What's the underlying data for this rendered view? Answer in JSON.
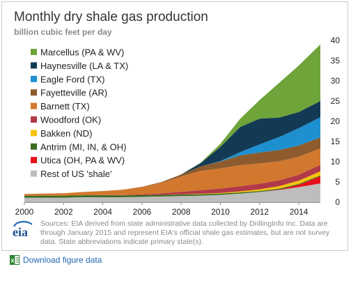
{
  "title": "Monthly dry shale gas production",
  "subtitle": "billion cubic feet per day",
  "sources": "Sources: EIA derived from state administrative data collected by DrillingInfo Inc. Data are through January 2015  and represent EIA's official shale gas estimates, but are not survey data. State abbreviations indicate primary state(s).",
  "logo_text": "eia",
  "download_label": "Download figure data",
  "chart_data": {
    "type": "area",
    "stacked": true,
    "xlim": [
      2000,
      2015.1
    ],
    "ylim": [
      0,
      40
    ],
    "x_ticks": [
      2000,
      2002,
      2004,
      2006,
      2008,
      2010,
      2012,
      2014
    ],
    "y_ticks": [
      0,
      5,
      10,
      15,
      20,
      25,
      30,
      35,
      40
    ],
    "y_axis_side": "right",
    "grid": false,
    "legend_position": "top-left",
    "legend_order": [
      "Marcellus (PA & WV)",
      "Haynesville (LA & TX)",
      "Eagle Ford (TX)",
      "Fayetteville (AR)",
      "Barnett (TX)",
      "Woodford (OK)",
      "Bakken (ND)",
      "Antrim (MI, IN, & OH)",
      "Utica (OH, PA & WV)",
      "Rest of US 'shale'"
    ],
    "x": [
      2000,
      2001,
      2002,
      2003,
      2004,
      2005,
      2006,
      2007,
      2008,
      2009,
      2010,
      2011,
      2012,
      2013,
      2014,
      2015.1
    ],
    "series": [
      {
        "name": "Rest of US 'shale'",
        "color": "#bdbdbd",
        "values": [
          1.1,
          1.1,
          1.1,
          1.2,
          1.2,
          1.2,
          1.3,
          1.4,
          1.5,
          1.6,
          1.8,
          2.1,
          2.5,
          3.0,
          3.7,
          4.6
        ]
      },
      {
        "name": "Utica (OH, PA & WV)",
        "color": "#e8111b",
        "values": [
          0,
          0,
          0,
          0,
          0,
          0,
          0,
          0,
          0,
          0,
          0,
          0,
          0,
          0.1,
          0.6,
          1.8
        ]
      },
      {
        "name": "Antrim (MI, IN, & OH)",
        "color": "#3d6b20",
        "values": [
          0.5,
          0.5,
          0.5,
          0.5,
          0.5,
          0.45,
          0.45,
          0.4,
          0.4,
          0.35,
          0.3,
          0.3,
          0.25,
          0.25,
          0.2,
          0.2
        ]
      },
      {
        "name": "Bakken (ND)",
        "color": "#f5c40d",
        "values": [
          0,
          0,
          0,
          0,
          0,
          0,
          0,
          0,
          0.05,
          0.1,
          0.15,
          0.25,
          0.4,
          0.6,
          0.8,
          1.0
        ]
      },
      {
        "name": "Woodford (OK)",
        "color": "#b23a48",
        "values": [
          0,
          0,
          0,
          0,
          0.05,
          0.1,
          0.2,
          0.35,
          0.6,
          0.9,
          1.1,
          1.3,
          1.4,
          1.45,
          1.5,
          1.6
        ]
      },
      {
        "name": "Barnett (TX)",
        "color": "#d2782e",
        "values": [
          0.4,
          0.5,
          0.6,
          0.8,
          1.0,
          1.3,
          1.8,
          2.6,
          3.8,
          4.8,
          5.0,
          5.2,
          5.0,
          4.7,
          4.4,
          4.1
        ]
      },
      {
        "name": "Fayetteville (AR)",
        "color": "#8d5b2e",
        "values": [
          0,
          0,
          0,
          0,
          0,
          0,
          0.05,
          0.2,
          0.5,
          1.1,
          1.7,
          2.4,
          2.7,
          2.8,
          2.8,
          2.7
        ]
      },
      {
        "name": "Eagle Ford (TX)",
        "color": "#1e90d0",
        "values": [
          0,
          0,
          0,
          0,
          0,
          0,
          0,
          0,
          0,
          0,
          0.1,
          0.8,
          2.0,
          3.2,
          4.3,
          5.0
        ]
      },
      {
        "name": "Haynesville (LA & TX)",
        "color": "#133a55",
        "values": [
          0,
          0,
          0,
          0,
          0,
          0,
          0,
          0,
          0,
          0.8,
          3.5,
          6.2,
          6.4,
          4.8,
          4.0,
          4.0
        ]
      },
      {
        "name": "Marcellus (PA & WV)",
        "color": "#6ea43a",
        "values": [
          0,
          0,
          0,
          0,
          0,
          0,
          0,
          0,
          0,
          0.1,
          0.8,
          2.0,
          4.6,
          8.6,
          11.5,
          14.0
        ]
      }
    ]
  }
}
